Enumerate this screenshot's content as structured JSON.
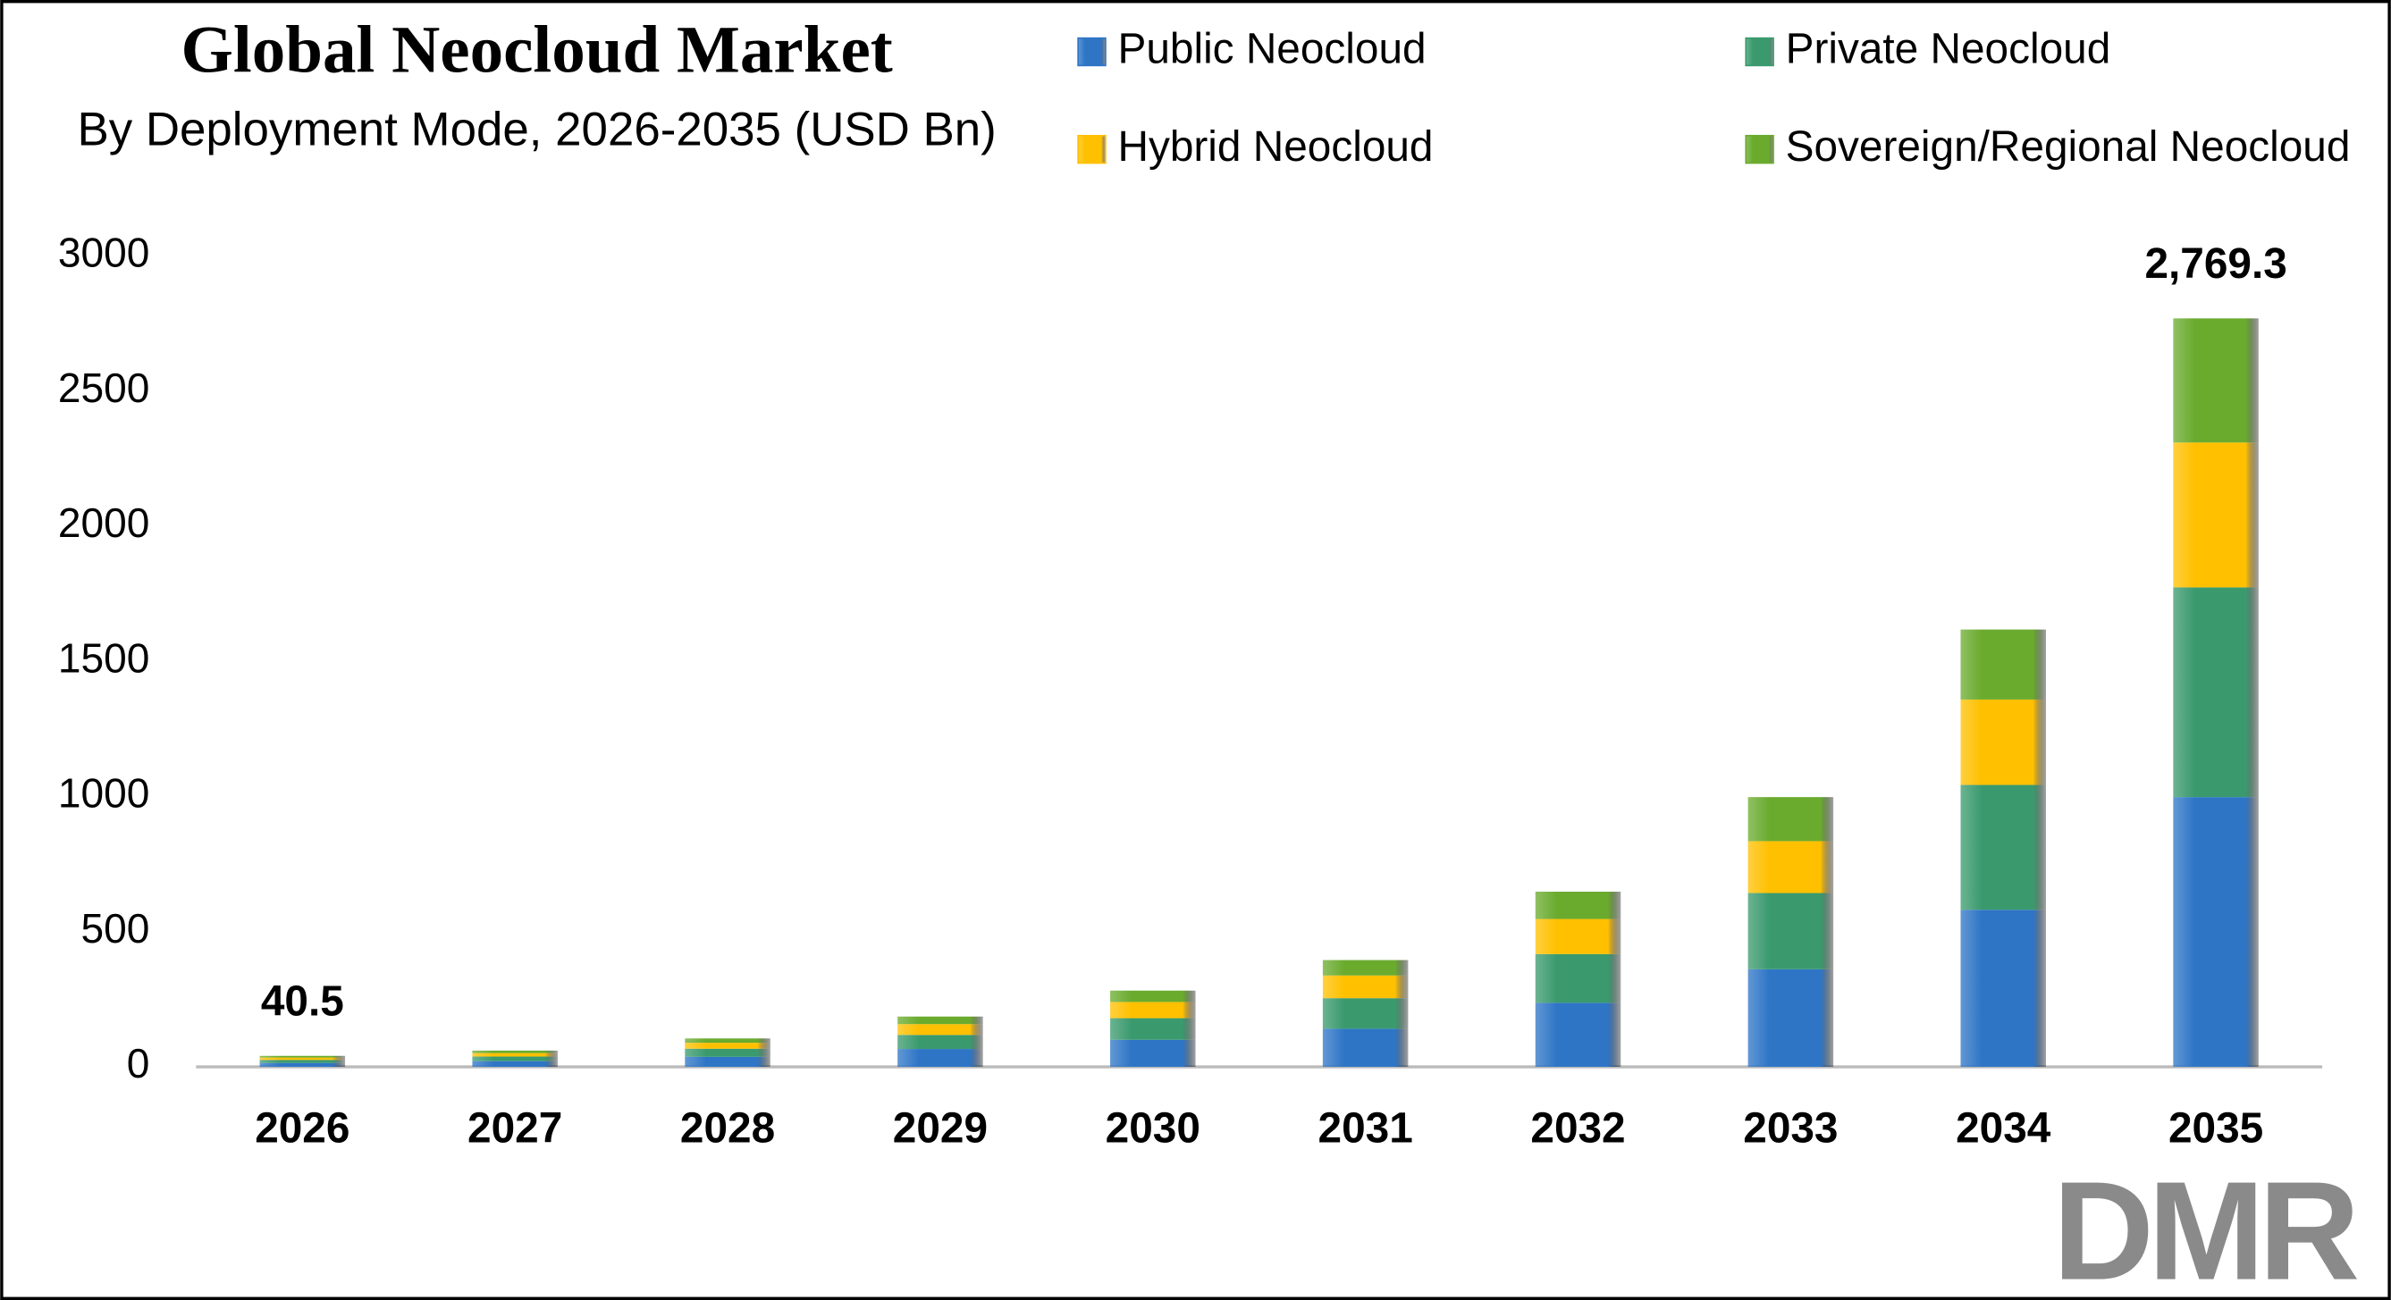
{
  "chart_data": {
    "type": "stacked_bar",
    "title": "Global Neocloud Market",
    "subtitle": "By Deployment Mode, 2026-2035 (USD Bn)",
    "categories": [
      "2026",
      "2027",
      "2028",
      "2029",
      "2030",
      "2031",
      "2032",
      "2033",
      "2034",
      "2035"
    ],
    "series": [
      {
        "name": "Public Neocloud",
        "color": "#2e75c6",
        "values": [
          14.3,
          21,
          37,
          66,
          100,
          141,
          237,
          361,
          581,
          998
        ]
      },
      {
        "name": "Private Neocloud",
        "color": "#3a9a6e",
        "values": [
          11.3,
          17,
          30,
          52,
          80,
          113,
          180,
          282,
          462,
          776
        ]
      },
      {
        "name": "Hybrid Neocloud",
        "color": "#ffc000",
        "values": [
          8.7,
          13,
          22,
          40,
          60,
          84,
          130,
          192,
          316,
          536
        ]
      },
      {
        "name": "Sovereign/Regional Neocloud",
        "color": "#6aab2e",
        "values": [
          6.2,
          9,
          16,
          28,
          42,
          57,
          101,
          163,
          259,
          459.3
        ]
      }
    ],
    "total_labels": [
      40.5,
      null,
      null,
      null,
      null,
      null,
      null,
      null,
      null,
      {
        "value": 2769.3,
        "label": "2,769.3"
      }
    ],
    "ylim": [
      0,
      3000
    ],
    "yticks": [
      0,
      500,
      1000,
      1500,
      2000,
      2500,
      3000
    ],
    "grid": false
  },
  "logo": "DMR"
}
